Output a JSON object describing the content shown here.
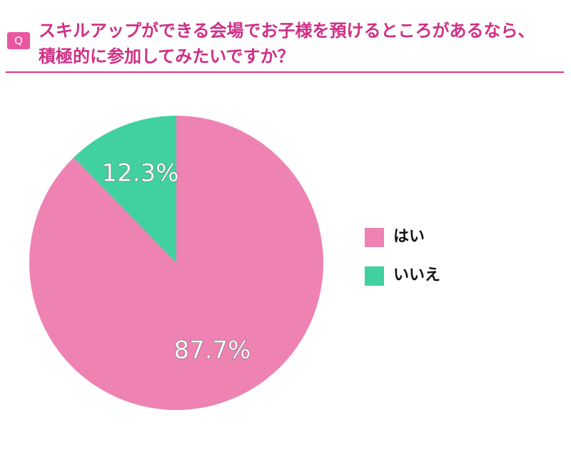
{
  "header": {
    "badge": "Q"
  },
  "chart_data": {
    "type": "pie",
    "title_lines": [
      "スキルアップができる会場でお子様を預けるところがあるなら、",
      "積極的に参加してみたいですか？"
    ],
    "categories": [
      "はい",
      "いいえ"
    ],
    "values": [
      87.7,
      12.3
    ],
    "value_labels": [
      "87.7%",
      "12.3%"
    ],
    "colors": [
      "#ee82b3",
      "#41d0a0"
    ],
    "legend": "right"
  }
}
